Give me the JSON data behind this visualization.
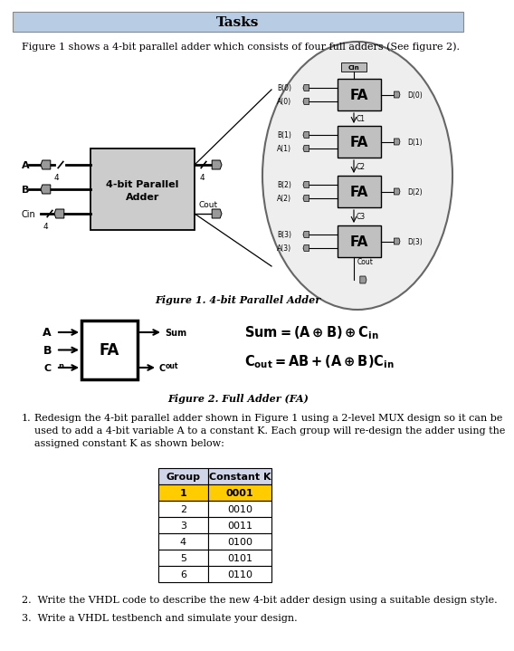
{
  "title": "Tasks",
  "title_bg": "#b8cce4",
  "intro_text": "Figure 1 shows a 4-bit parallel adder which consists of four full adders (See figure 2).",
  "fig1_caption": "Figure 1. 4-bit Parallel Adder",
  "fig2_caption": "Figure 2. Full Adder (FA)",
  "task1_prefix": "1.",
  "task1_body": "Redesign the 4-bit parallel adder shown in Figure 1 using a 2-level MUX design so it can be\nused to add a 4-bit variable A to a constant K. Each group will re-design the adder using the\nassigned constant K as shown below:",
  "task2": "2.  Write the VHDL code to describe the new 4-bit adder design using a suitable design style.",
  "task3": "3.  Write a VHDL testbench and simulate your design.",
  "table_headers": [
    "Group",
    "Constant K"
  ],
  "table_rows": [
    [
      "1",
      "0001"
    ],
    [
      "2",
      "0010"
    ],
    [
      "3",
      "0011"
    ],
    [
      "4",
      "0100"
    ],
    [
      "5",
      "0101"
    ],
    [
      "6",
      "0110"
    ]
  ],
  "highlighted_row": 0,
  "highlight_color": "#ffcc00",
  "bg_color": "#ffffff",
  "pin_color": "#999999",
  "box_color": "#cccccc",
  "fa_color": "#c0c0c0"
}
